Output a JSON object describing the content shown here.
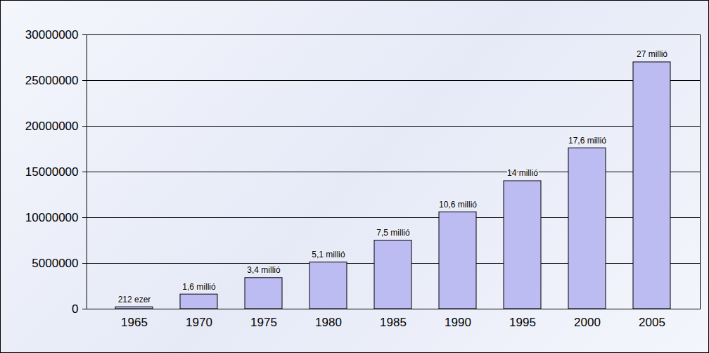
{
  "chart_data": {
    "type": "bar",
    "categories": [
      "1965",
      "1970",
      "1975",
      "1980",
      "1985",
      "1990",
      "1995",
      "2000",
      "2005"
    ],
    "values": [
      212000,
      1600000,
      3400000,
      5100000,
      7500000,
      10600000,
      14000000,
      17600000,
      27000000
    ],
    "value_labels": [
      "212 ezer",
      "1,6 millió",
      "3,4 millió",
      "5,1 millió",
      "7,5 millió",
      "10,6 millió",
      "14 millió",
      "17,6 millió",
      "27 millió"
    ],
    "data_labels": true,
    "color": "#bcbcf2",
    "ylim": [
      0,
      30000000
    ],
    "yticks": [
      0,
      5000000,
      10000000,
      15000000,
      20000000,
      25000000,
      30000000
    ],
    "grid": true
  }
}
